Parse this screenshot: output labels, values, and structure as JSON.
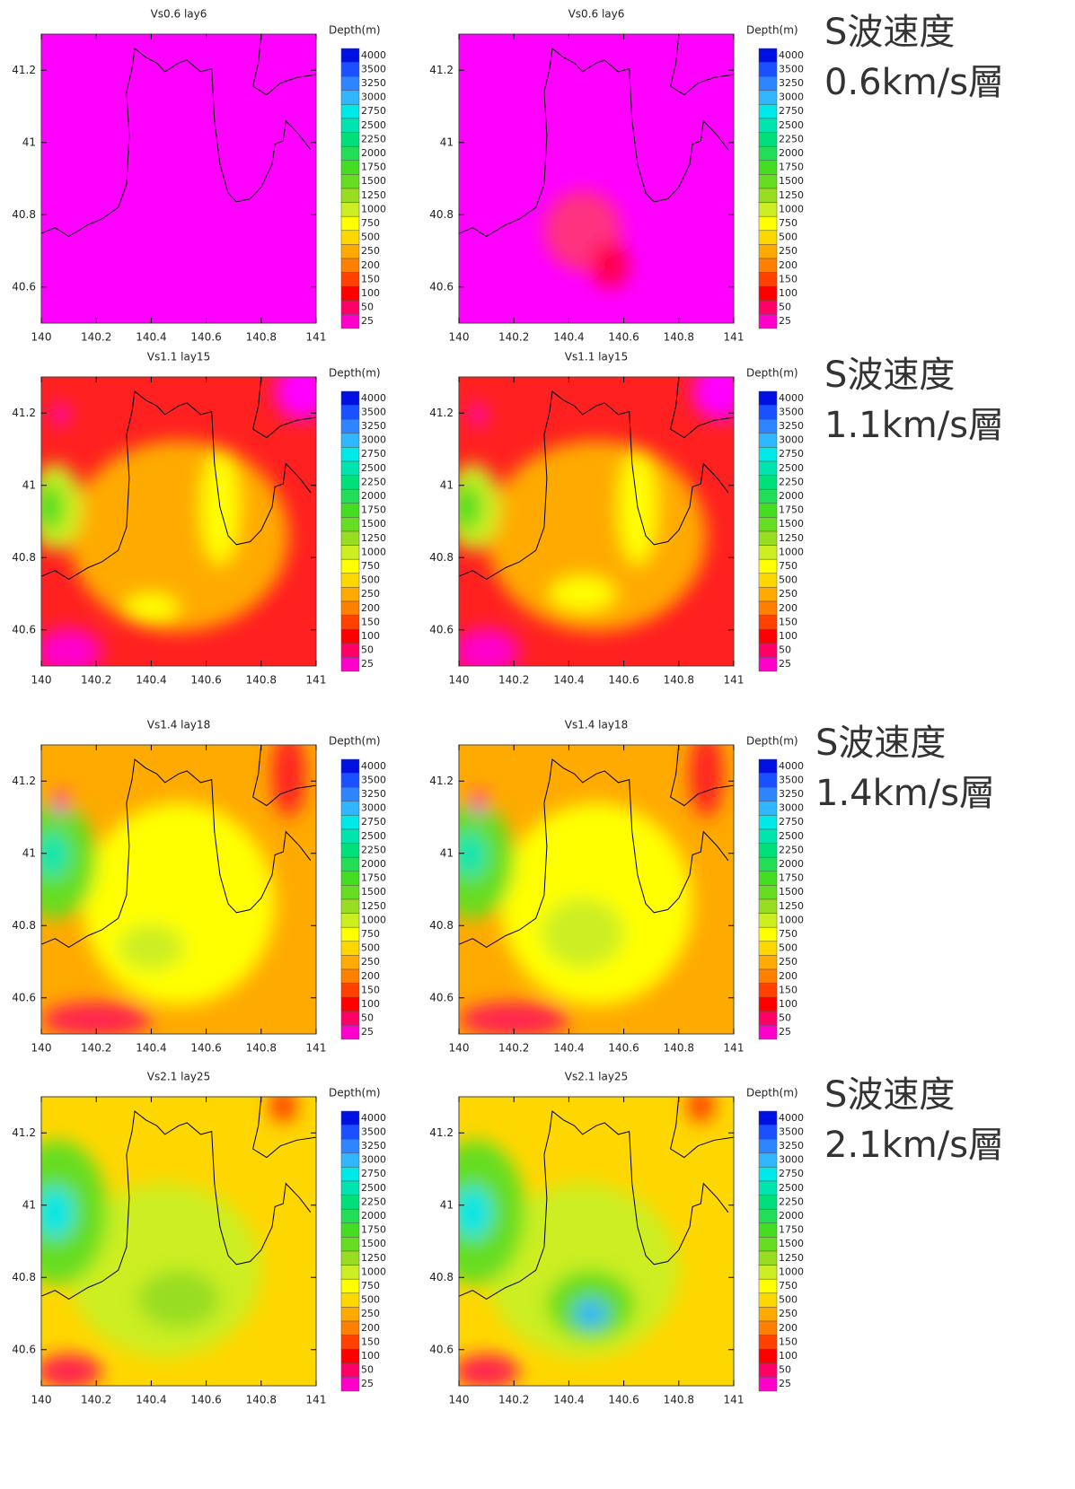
{
  "chart_data": [
    {
      "type": "contour",
      "title": "Vs0.6 lay6",
      "xlim": [
        140,
        141
      ],
      "ylim": [
        40.5,
        41.3
      ],
      "xticks": [
        140,
        140.2,
        140.4,
        140.6,
        140.8,
        141
      ],
      "yticks": [
        40.6,
        40.8,
        41,
        41.2
      ]
    },
    {
      "type": "contour",
      "title": "Vs0.6 lay6",
      "xlim": [
        140,
        141
      ],
      "ylim": [
        40.5,
        41.3
      ],
      "xticks": [
        140,
        140.2,
        140.4,
        140.6,
        140.8,
        141
      ],
      "yticks": [
        40.6,
        40.8,
        41,
        41.2
      ]
    },
    {
      "type": "contour",
      "title": "Vs1.1 lay15",
      "xlim": [
        140,
        141
      ],
      "ylim": [
        40.5,
        41.3
      ],
      "xticks": [
        140,
        140.2,
        140.4,
        140.6,
        140.8,
        141
      ],
      "yticks": [
        40.6,
        40.8,
        41,
        41.2
      ]
    },
    {
      "type": "contour",
      "title": "Vs1.1 lay15",
      "xlim": [
        140,
        141
      ],
      "ylim": [
        40.5,
        41.3
      ],
      "xticks": [
        140,
        140.2,
        140.4,
        140.6,
        140.8,
        141
      ],
      "yticks": [
        40.6,
        40.8,
        41,
        41.2
      ]
    },
    {
      "type": "contour",
      "title": "Vs1.4 lay18",
      "xlim": [
        140,
        141
      ],
      "ylim": [
        40.5,
        41.3
      ],
      "xticks": [
        140,
        140.2,
        140.4,
        140.6,
        140.8,
        141
      ],
      "yticks": [
        40.6,
        40.8,
        41,
        41.2
      ]
    },
    {
      "type": "contour",
      "title": "Vs1.4 lay18",
      "xlim": [
        140,
        141
      ],
      "ylim": [
        40.5,
        41.3
      ],
      "xticks": [
        140,
        140.2,
        140.4,
        140.6,
        140.8,
        141
      ],
      "yticks": [
        40.6,
        40.8,
        41,
        41.2
      ]
    },
    {
      "type": "contour",
      "title": "Vs2.1 lay25",
      "xlim": [
        140,
        141
      ],
      "ylim": [
        40.5,
        41.3
      ],
      "xticks": [
        140,
        140.2,
        140.4,
        140.6,
        140.8,
        141
      ],
      "yticks": [
        40.6,
        40.8,
        41,
        41.2
      ]
    },
    {
      "type": "contour",
      "title": "Vs2.1 lay25",
      "xlim": [
        140,
        141
      ],
      "ylim": [
        40.5,
        41.3
      ],
      "xticks": [
        140,
        140.2,
        140.4,
        140.6,
        140.8,
        141
      ],
      "yticks": [
        40.6,
        40.8,
        41,
        41.2
      ]
    }
  ],
  "colorbar": {
    "title": "Depth(m)",
    "levels": [
      4000,
      3500,
      3250,
      3000,
      2750,
      2500,
      2250,
      2000,
      1750,
      1500,
      1250,
      1000,
      750,
      500,
      250,
      200,
      150,
      100,
      50,
      25
    ],
    "colors": [
      "#0010e0",
      "#1a50ff",
      "#2f85ff",
      "#30b5ff",
      "#00e8e8",
      "#00e5b0",
      "#00e07a",
      "#22dd55",
      "#44dd22",
      "#66dd22",
      "#99dd22",
      "#ccee22",
      "#ffff00",
      "#ffd700",
      "#ffaa00",
      "#ff8000",
      "#ff4000",
      "#ff0000",
      "#ff0066",
      "#ff00cc"
    ]
  },
  "row_labels": [
    [
      "S波速度",
      "0.6km/s層"
    ],
    [
      "S波速度",
      "1.1km/s層"
    ],
    [
      "S波速度",
      "1.4km/s層"
    ],
    [
      "S波速度",
      "2.1km/s層"
    ]
  ]
}
